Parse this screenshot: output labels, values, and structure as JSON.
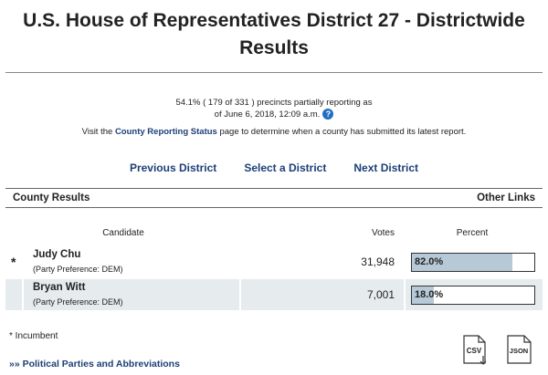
{
  "header": {
    "title": "U.S. House of Representatives District 27 - Districtwide Results"
  },
  "status": {
    "precincts": "54.1% ( 179 of 331 ) precincts partially reporting as of June 6, 2018, 12:09 a.m.",
    "visit_prefix": "Visit the",
    "visit_link": "County Reporting Status",
    "visit_suffix": "page to determine when a county has submitted its latest report."
  },
  "nav": [
    "Previous District",
    "Select a District",
    "Next District"
  ],
  "section": {
    "left": "County Results",
    "right": "Other Links"
  },
  "table": {
    "columns": [
      "Candidate",
      "Votes",
      "Percent"
    ],
    "rows": [
      {
        "marker": "*",
        "name": "Judy Chu",
        "party": "(Party Preference: DEM)",
        "votes": "31,948",
        "percent": {
          "value": 82.0,
          "label": "82.0%"
        }
      },
      {
        "name": "Bryan Witt",
        "party": "(Party Preference: DEM)",
        "votes": "7,001",
        "percent": {
          "value": 18.0,
          "label": "18.0%"
        }
      }
    ]
  },
  "footer": {
    "incumbent": "* Incumbent",
    "link": "»» Political Parties and Abbreviations",
    "downloads": [
      "CSV",
      "JSON"
    ]
  }
}
